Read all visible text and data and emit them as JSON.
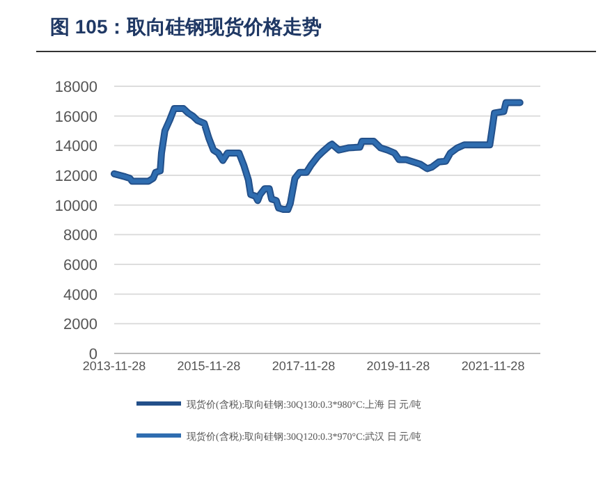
{
  "chart_data": {
    "type": "line",
    "title": "图 105：取向硅钢现货价格走势",
    "x": [
      "2013-11-28",
      "2014-02-22",
      "2014-03-29",
      "2014-04-16",
      "2014-08-19",
      "2014-09-25",
      "2014-10-13",
      "2014-11-18",
      "2014-11-28",
      "2014-12-24",
      "2015-01-29",
      "2015-03-06",
      "2015-05-16",
      "2015-06-21",
      "2015-07-27",
      "2015-09-01",
      "2015-10-24",
      "2015-11-28",
      "2016-01-03",
      "2016-02-08",
      "2016-03-15",
      "2016-04-20",
      "2016-07-18",
      "2016-08-23",
      "2016-09-28",
      "2016-10-16",
      "2016-11-21",
      "2016-12-09",
      "2016-12-27",
      "2017-02-01",
      "2017-03-08",
      "2017-03-26",
      "2017-05-01",
      "2017-05-19",
      "2017-06-24",
      "2017-07-30",
      "2017-08-17",
      "2017-09-22",
      "2017-10-28",
      "2017-12-20",
      "2018-01-25",
      "2018-03-20",
      "2018-04-25",
      "2018-06-17",
      "2018-07-05",
      "2018-08-27",
      "2018-11-07",
      "2019-02-05",
      "2019-02-22",
      "2019-05-22",
      "2019-07-15",
      "2019-09-07",
      "2019-10-30",
      "2019-12-05",
      "2020-01-28",
      "2020-03-23",
      "2020-05-16",
      "2020-07-08",
      "2020-08-13",
      "2020-10-06",
      "2020-11-28",
      "2021-01-03",
      "2021-02-26",
      "2021-04-20",
      "2021-11-03",
      "2021-11-21",
      "2021-12-09",
      "2022-02-19",
      "2022-03-08",
      "2022-06-24"
    ],
    "series": [
      {
        "name": "现货价(含税):取向硅钢:30Q130:0.3*980°C:上海 日 元/吨",
        "color": "#23508a",
        "values": [
          12100,
          11900,
          11800,
          11600,
          11600,
          11800,
          12200,
          12300,
          13500,
          15000,
          15700,
          16500,
          16500,
          16200,
          16000,
          15700,
          15500,
          14500,
          13700,
          13500,
          13000,
          13500,
          13500,
          12700,
          11700,
          10700,
          10600,
          10300,
          10700,
          11100,
          11100,
          10400,
          10300,
          9800,
          9700,
          9700,
          10100,
          11800,
          12200,
          12200,
          12700,
          13300,
          13600,
          14000,
          14100,
          13700,
          13850,
          13900,
          14300,
          14300,
          13850,
          13700,
          13500,
          13050,
          13050,
          12900,
          12750,
          12450,
          12550,
          12900,
          12950,
          13500,
          13850,
          14050,
          14050,
          15100,
          16200,
          16300,
          16900,
          16900
        ]
      },
      {
        "name": "现货价(含税):取向硅钢:30Q120:0.3*970°C:武汉 日 元/吨",
        "color": "#2f6db0",
        "values": [
          12100,
          11900,
          11800,
          11600,
          11600,
          11800,
          12200,
          12300,
          13500,
          15000,
          15700,
          16500,
          16500,
          16200,
          16000,
          15700,
          15500,
          14500,
          13700,
          13500,
          13000,
          13500,
          13500,
          12700,
          11700,
          10700,
          10600,
          10300,
          10700,
          11100,
          11100,
          10400,
          10300,
          9800,
          9700,
          9700,
          10100,
          11800,
          12200,
          12200,
          12700,
          13300,
          13600,
          14000,
          14100,
          13700,
          13850,
          13900,
          14300,
          14300,
          13850,
          13700,
          13500,
          13050,
          13050,
          12900,
          12750,
          12450,
          12550,
          12900,
          12950,
          13500,
          13850,
          14050,
          14050,
          15100,
          16200,
          16300,
          16900,
          16900
        ]
      }
    ],
    "xlim": [
      "2013-11-28",
      "2022-11-28"
    ],
    "xticks": [
      {
        "value": "2013-11-28",
        "label": "2013-11-28"
      },
      {
        "value": "2015-11-28",
        "label": "2015-11-28"
      },
      {
        "value": "2017-11-28",
        "label": "2017-11-28"
      },
      {
        "value": "2019-11-28",
        "label": "2019-11-28"
      },
      {
        "value": "2021-11-28",
        "label": "2021-11-28"
      }
    ],
    "ylim": [
      0,
      18000
    ],
    "yticks": [
      0,
      2000,
      4000,
      6000,
      8000,
      10000,
      12000,
      14000,
      16000,
      18000
    ],
    "grid": "y",
    "legend": "bottom",
    "marker": "none",
    "line_style": "solid"
  }
}
